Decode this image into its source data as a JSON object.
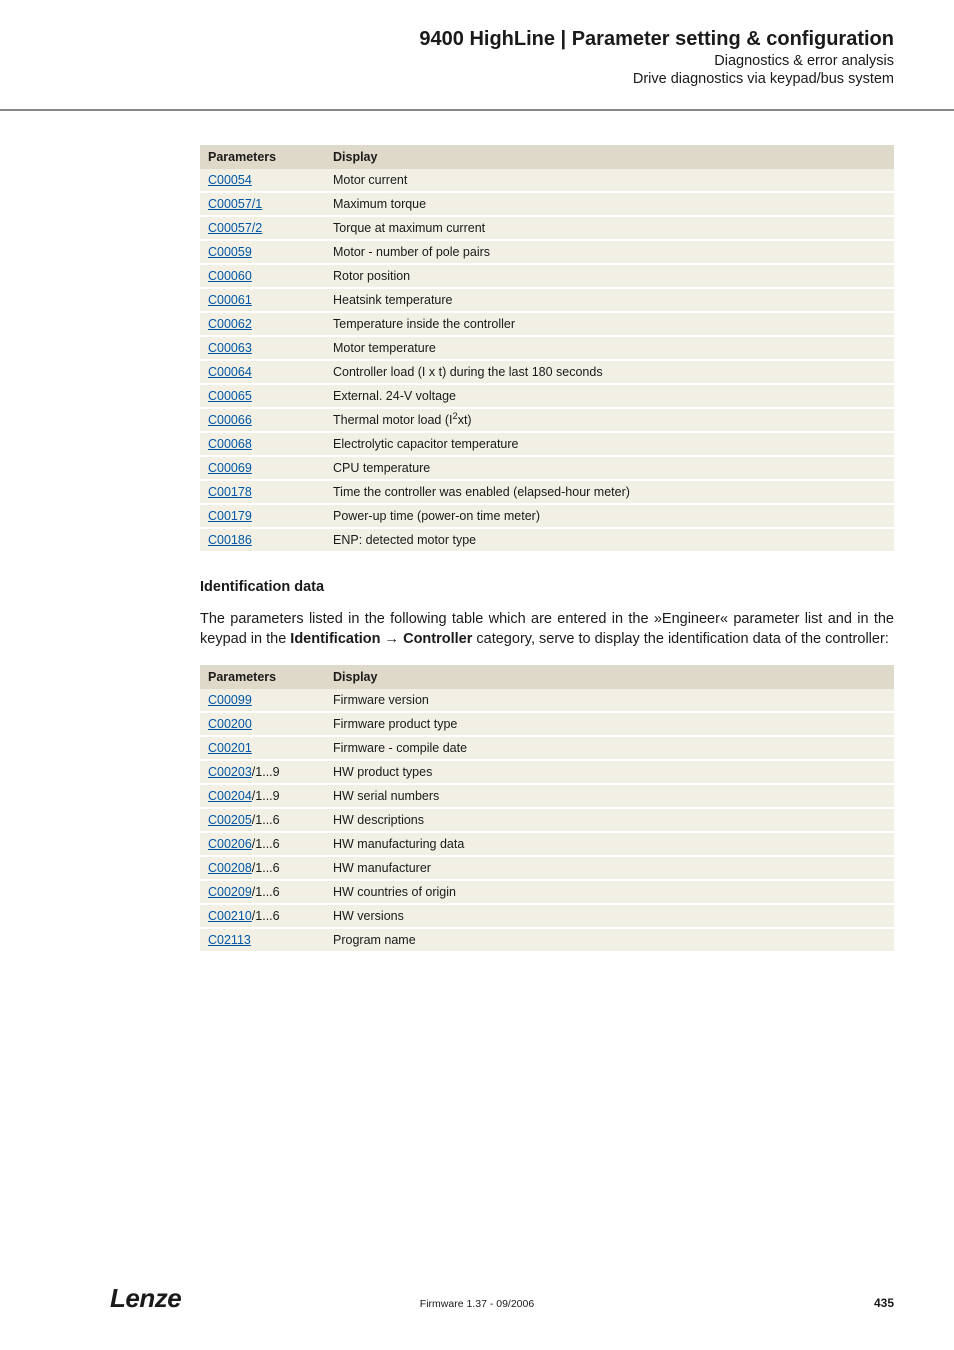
{
  "header": {
    "title": "9400 HighLine | Parameter setting & configuration",
    "subtitle1": "Diagnostics & error analysis",
    "subtitle2": "Drive diagnostics via keypad/bus system"
  },
  "table1": {
    "columns": [
      "Parameters",
      "Display"
    ],
    "rows": [
      {
        "param": "C00054",
        "suffix": "",
        "display": "Motor current"
      },
      {
        "param": "C00057/1",
        "suffix": "",
        "display": "Maximum torque"
      },
      {
        "param": "C00057/2",
        "suffix": "",
        "display": "Torque at maximum current"
      },
      {
        "param": "C00059",
        "suffix": "",
        "display": "Motor - number of pole pairs"
      },
      {
        "param": "C00060",
        "suffix": "",
        "display": "Rotor position"
      },
      {
        "param": "C00061",
        "suffix": "",
        "display": "Heatsink temperature"
      },
      {
        "param": "C00062",
        "suffix": "",
        "display": "Temperature inside the controller"
      },
      {
        "param": "C00063",
        "suffix": "",
        "display": "Motor temperature"
      },
      {
        "param": "C00064",
        "suffix": "",
        "display": "Controller load (I x t) during the last 180 seconds"
      },
      {
        "param": "C00065",
        "suffix": "",
        "display": "External. 24-V voltage"
      },
      {
        "param": "C00066",
        "suffix": "",
        "display_html": "Thermal motor load (I<sup>2</sup>xt)"
      },
      {
        "param": "C00068",
        "suffix": "",
        "display": "Electrolytic capacitor temperature"
      },
      {
        "param": "C00069",
        "suffix": "",
        "display": "CPU temperature"
      },
      {
        "param": "C00178",
        "suffix": "",
        "display": "Time the controller was enabled (elapsed-hour meter)"
      },
      {
        "param": "C00179",
        "suffix": "",
        "display": "Power-up time (power-on time meter)"
      },
      {
        "param": "C00186",
        "suffix": "",
        "display": "ENP: detected motor type"
      }
    ]
  },
  "section": {
    "heading": "Identification data",
    "body_before": "The parameters listed in the following table which are entered in the »Engineer« parameter list and in the keypad in the ",
    "body_bold1": "Identification",
    "body_arrow": " → ",
    "body_bold2": "Controller",
    "body_after": " category, serve to display the identification data of the controller:"
  },
  "table2": {
    "columns": [
      "Parameters",
      "Display"
    ],
    "rows": [
      {
        "param": "C00099",
        "suffix": "",
        "display": "Firmware version"
      },
      {
        "param": "C00200",
        "suffix": "",
        "display": "Firmware product type"
      },
      {
        "param": "C00201",
        "suffix": "",
        "display": "Firmware - compile date"
      },
      {
        "param": "C00203",
        "suffix": "/1...9",
        "display": "HW product types"
      },
      {
        "param": "C00204",
        "suffix": "/1...9",
        "display": "HW serial numbers"
      },
      {
        "param": "C00205",
        "suffix": "/1...6",
        "display": "HW descriptions"
      },
      {
        "param": "C00206",
        "suffix": "/1...6",
        "display": "HW manufacturing data"
      },
      {
        "param": "C00208",
        "suffix": "/1...6",
        "display": "HW manufacturer"
      },
      {
        "param": "C00209",
        "suffix": "/1...6",
        "display": "HW countries of origin"
      },
      {
        "param": "C00210",
        "suffix": "/1...6",
        "display": "HW versions"
      },
      {
        "param": "C02113",
        "suffix": "",
        "display": "Program name"
      }
    ]
  },
  "footer": {
    "logo": "Lenze",
    "center": "Firmware 1.37 - 09/2006",
    "pagenum": "435"
  },
  "colors": {
    "header_bg": "#ded9c9",
    "row_bg": "#f2efe5",
    "link": "#0057a6",
    "text": "#1a1a1a",
    "rule": "#888888"
  }
}
